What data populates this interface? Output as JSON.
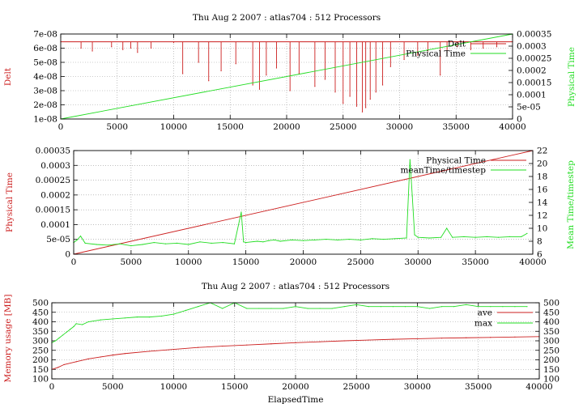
{
  "colors": {
    "red": "#cc1f1f",
    "green": "#22dd22",
    "axis": "#000000",
    "grid": "#999999"
  },
  "chart_data": [
    {
      "type": "line",
      "title": "Thu Aug 2 2007 : atlas704 : 512 Processors",
      "xlabel": "",
      "ylabel": "Delt",
      "y2label": "Physical Time",
      "xlim": [
        0,
        40000
      ],
      "ylim": [
        1e-08,
        7e-08
      ],
      "y2lim": [
        0,
        0.00035
      ],
      "xticks": [
        "0",
        "5000",
        "10000",
        "15000",
        "20000",
        "25000",
        "30000",
        "35000",
        "40000"
      ],
      "yticks": [
        "1e-08",
        "2e-08",
        "3e-08",
        "4e-08",
        "5e-08",
        "6e-08",
        "7e-08"
      ],
      "y2ticks": [
        "0",
        "5e-05",
        "0.0001",
        "0.00015",
        "0.0002",
        "0.00025",
        "0.0003",
        "0.00035"
      ],
      "grid": true,
      "legend": "top-right",
      "series": [
        {
          "name": "Delt",
          "axis": "y",
          "color": "red",
          "baseline": 6.45e-08,
          "x": [
            0,
            1800,
            2800,
            4500,
            5500,
            6200,
            6800,
            8000,
            10000,
            10800,
            12200,
            13100,
            14200,
            15500,
            17000,
            17600,
            18200,
            19100,
            20300,
            21100,
            22500,
            23400,
            24300,
            25000,
            25600,
            26200,
            26700,
            27000,
            27400,
            27900,
            28500,
            29200,
            30400,
            31600,
            32500,
            33600,
            34200,
            35100,
            36300,
            37400,
            38600,
            40000
          ],
          "y": [
            6.45e-08,
            6e-08,
            5.8e-08,
            6.1e-08,
            5.9e-08,
            6e-08,
            5.7e-08,
            6e-08,
            6.4e-08,
            4.2e-08,
            5e-08,
            3.7e-08,
            4.4e-08,
            4.9e-08,
            3.4e-08,
            3.1e-08,
            4.1e-08,
            4.6e-08,
            3e-08,
            4.2e-08,
            3.3e-08,
            3.8e-08,
            2.9e-08,
            2.1e-08,
            2.6e-08,
            1.9e-08,
            1.5e-08,
            1.8e-08,
            2.4e-08,
            2.9e-08,
            3.4e-08,
            4.7e-08,
            5.2e-08,
            5.5e-08,
            5.8e-08,
            4.1e-08,
            5.7e-08,
            6.1e-08,
            5.9e-08,
            6e-08,
            6.1e-08,
            6.45e-08
          ]
        },
        {
          "name": "Physical Time",
          "axis": "y2",
          "color": "green",
          "x": [
            0,
            40000
          ],
          "y": [
            0,
            0.00035
          ]
        }
      ]
    },
    {
      "type": "line",
      "title": "",
      "xlabel": "",
      "ylabel": "Physical Time",
      "y2label": "Mean Time/timestep",
      "xlim": [
        0,
        40000
      ],
      "ylim": [
        0,
        0.00035
      ],
      "y2lim": [
        6,
        22
      ],
      "xticks": [
        "0",
        "5000",
        "10000",
        "15000",
        "20000",
        "25000",
        "30000",
        "35000",
        "40000"
      ],
      "yticks": [
        "0",
        "5e-05",
        "0.0001",
        "0.00015",
        "0.0002",
        "0.00025",
        "0.0003",
        "0.00035"
      ],
      "y2ticks": [
        "6",
        "8",
        "10",
        "12",
        "14",
        "16",
        "18",
        "20",
        "22"
      ],
      "grid": true,
      "legend": "top-right",
      "series": [
        {
          "name": "Physical Time",
          "axis": "y",
          "color": "red",
          "x": [
            0,
            40000
          ],
          "y": [
            0,
            0.00035
          ]
        },
        {
          "name": "meanTime/timestep",
          "axis": "y2",
          "color": "green",
          "x": [
            0,
            300,
            600,
            1000,
            2000,
            3000,
            4000,
            5000,
            6000,
            7000,
            8000,
            9000,
            10000,
            11000,
            12000,
            13000,
            14000,
            14600,
            14800,
            15000,
            16000,
            16500,
            17000,
            17500,
            18000,
            19000,
            20000,
            21000,
            22000,
            23000,
            24000,
            25000,
            26000,
            27000,
            28000,
            29000,
            29300,
            29500,
            29700,
            30000,
            31000,
            32000,
            32500,
            33000,
            34000,
            35000,
            36000,
            37000,
            38000,
            39000,
            39500
          ],
          "y": [
            7.8,
            8.2,
            8.8,
            7.7,
            7.5,
            7.4,
            7.6,
            7.3,
            7.5,
            7.8,
            7.6,
            7.7,
            7.5,
            7.9,
            7.7,
            7.8,
            7.6,
            12.5,
            7.9,
            7.8,
            8.0,
            7.9,
            8.1,
            8.2,
            8.0,
            8.2,
            8.1,
            8.2,
            8.3,
            8.2,
            8.3,
            8.2,
            8.4,
            8.3,
            8.4,
            8.5,
            20.6,
            15.0,
            9.0,
            8.6,
            8.5,
            8.6,
            10.0,
            8.6,
            8.7,
            8.6,
            8.7,
            8.6,
            8.7,
            8.7,
            9.2
          ]
        }
      ]
    },
    {
      "type": "line",
      "title": "Thu Aug 2 2007 : atlas704 : 512 Processors",
      "xlabel": "ElapsedTime",
      "ylabel": "Memory usage [MB]",
      "y2label": "",
      "xlim": [
        0,
        40000
      ],
      "ylim": [
        100,
        500
      ],
      "y2lim": [
        100,
        500
      ],
      "xticks": [
        "0",
        "5000",
        "10000",
        "15000",
        "20000",
        "25000",
        "30000",
        "35000",
        "40000"
      ],
      "yticks": [
        "100",
        "150",
        "200",
        "250",
        "300",
        "350",
        "400",
        "450",
        "500"
      ],
      "y2ticks": [
        "100",
        "150",
        "200",
        "250",
        "300",
        "350",
        "400",
        "450",
        "500"
      ],
      "grid": true,
      "legend": "top-right",
      "series": [
        {
          "name": "ave",
          "axis": "y",
          "color": "red",
          "x": [
            0,
            500,
            1000,
            2000,
            3000,
            4000,
            5000,
            6000,
            8000,
            10000,
            12000,
            14000,
            16000,
            18000,
            20000,
            22000,
            24000,
            26000,
            28000,
            30000,
            32000,
            34000,
            36000,
            38000,
            40000
          ],
          "y": [
            150,
            160,
            175,
            190,
            205,
            215,
            225,
            233,
            245,
            255,
            265,
            272,
            278,
            284,
            290,
            295,
            300,
            304,
            308,
            311,
            314,
            316,
            318,
            320,
            322
          ]
        },
        {
          "name": "max",
          "axis": "y",
          "color": "green",
          "x": [
            0,
            300,
            600,
            900,
            1200,
            1500,
            1800,
            2000,
            2500,
            3000,
            4000,
            5000,
            6000,
            7000,
            8000,
            9000,
            10000,
            10500,
            11000,
            12000,
            13000,
            14000,
            15000,
            16000,
            17000,
            18000,
            19000,
            20000,
            21000,
            22000,
            23000,
            24000,
            25000,
            26000,
            27000,
            28000,
            29000,
            30000,
            31000,
            32000,
            33000,
            34000,
            35000,
            36000,
            37000,
            38000,
            39000
          ],
          "y": [
            290,
            300,
            315,
            330,
            345,
            360,
            375,
            390,
            385,
            400,
            410,
            415,
            420,
            425,
            425,
            430,
            440,
            450,
            460,
            480,
            500,
            470,
            500,
            470,
            470,
            470,
            470,
            480,
            470,
            470,
            470,
            480,
            490,
            480,
            480,
            480,
            480,
            480,
            470,
            480,
            480,
            490,
            480,
            480,
            480,
            480,
            480
          ]
        }
      ]
    }
  ]
}
